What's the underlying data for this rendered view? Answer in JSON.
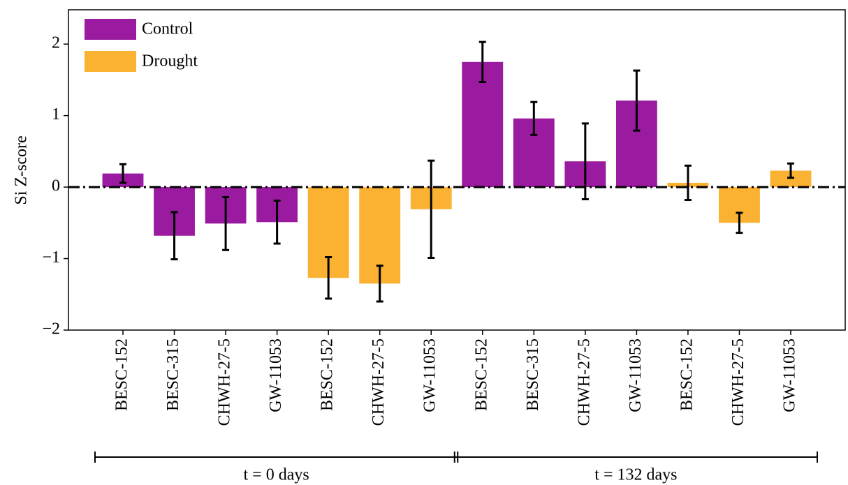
{
  "chart_data": {
    "type": "bar",
    "y_label": "Si Z-score",
    "categories": [
      "BESC-152",
      "BESC-315",
      "CHWH-27-5",
      "GW-11053",
      "BESC-152",
      "CHWH-27-5",
      "GW-11053",
      "BESC-152",
      "BESC-315",
      "CHWH-27-5",
      "GW-11053",
      "BESC-152",
      "CHWH-27-5",
      "GW-11053"
    ],
    "series": [
      {
        "name": "Control",
        "color": "#9b1ba0",
        "values": [
          0.19,
          -0.68,
          -0.51,
          -0.49,
          null,
          null,
          null,
          1.75,
          0.96,
          0.36,
          1.21,
          null,
          null,
          null
        ],
        "errors": [
          0.13,
          0.33,
          0.37,
          0.3,
          null,
          null,
          null,
          0.28,
          0.23,
          0.53,
          0.42,
          null,
          null,
          null
        ]
      },
      {
        "name": "Drought",
        "color": "#fbb131",
        "values": [
          null,
          null,
          null,
          null,
          -1.27,
          -1.35,
          -0.31,
          null,
          null,
          null,
          null,
          0.06,
          -0.5,
          0.23
        ],
        "errors": [
          null,
          null,
          null,
          null,
          0.29,
          0.25,
          0.68,
          null,
          null,
          null,
          null,
          0.24,
          0.14,
          0.1
        ]
      }
    ],
    "groups": [
      {
        "label": "t = 0 days",
        "size": 7
      },
      {
        "label": "t = 132 days",
        "size": 7
      }
    ],
    "ylim": [
      -2,
      2.48
    ],
    "yticks": [
      {
        "value": -2,
        "label": "−2"
      },
      {
        "value": -1,
        "label": "−1"
      },
      0,
      1,
      2
    ],
    "reference_line": 0,
    "legend": "upper left"
  }
}
